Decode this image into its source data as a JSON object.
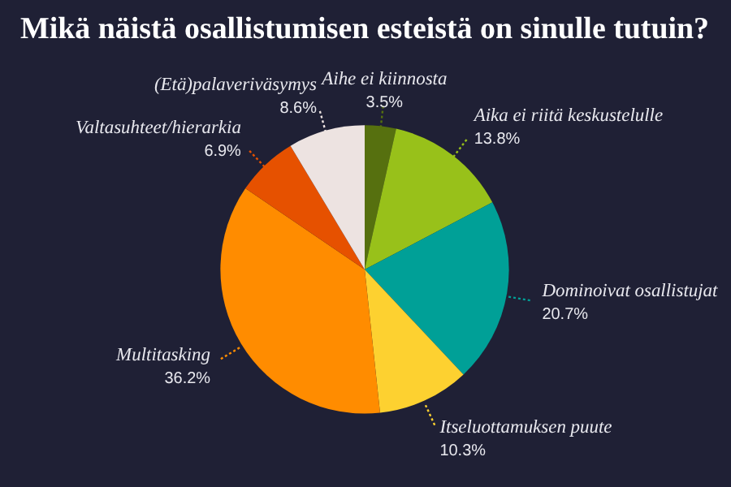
{
  "chart_data": {
    "type": "pie",
    "title": "Mikä näistä osallistumisen esteistä on sinulle tutuin?",
    "categories": [
      "Aihe ei kiinnosta",
      "Aika ei riitä keskustelulle",
      "Dominoivat osallistujat",
      "Itseluottamuksen puute",
      "Multitasking",
      "Valtasuhteet/hierarkia",
      "(Etä)palaveriväsymys"
    ],
    "values": [
      3.5,
      13.8,
      20.7,
      10.3,
      36.2,
      6.9,
      8.6
    ],
    "value_labels": [
      "3.5%",
      "13.8%",
      "20.7%",
      "10.3%",
      "36.2%",
      "6.9%",
      "8.6%"
    ],
    "colors": [
      "#56700f",
      "#98c11a",
      "#00a097",
      "#fdd130",
      "#ff8c00",
      "#e65100",
      "#ede3e1"
    ],
    "legend": false
  }
}
